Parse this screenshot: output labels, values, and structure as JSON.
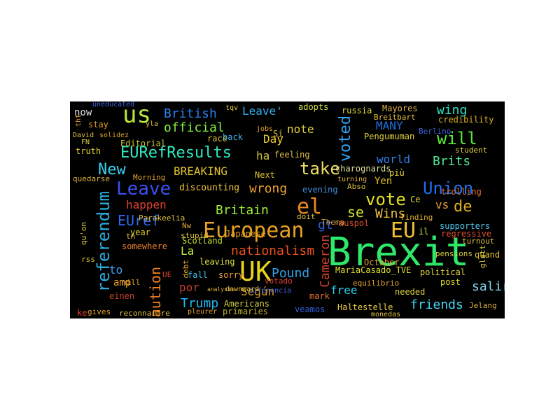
{
  "cloud": {
    "background": "#000000",
    "words": [
      {
        "text": "Brexit",
        "color": "#2ee86a"
      },
      {
        "text": "UK",
        "color": "#e8d41c"
      },
      {
        "text": "European",
        "color": "#e8a020"
      },
      {
        "text": "EU",
        "color": "#f0c030"
      },
      {
        "text": "us",
        "color": "#b8e838"
      },
      {
        "text": "Leave",
        "color": "#3c50f0"
      },
      {
        "text": "EURefResults",
        "color": "#30e8c0"
      },
      {
        "text": "referendum",
        "color": "#2ab0e0"
      },
      {
        "text": "el",
        "color": "#ec8a20"
      },
      {
        "text": "vote",
        "color": "#e0e020"
      },
      {
        "text": "Union",
        "color": "#2070f0"
      },
      {
        "text": "voted",
        "color": "#30a0f0"
      },
      {
        "text": "take",
        "color": "#f0e060"
      },
      {
        "text": "will",
        "color": "#58e838"
      },
      {
        "text": "New",
        "color": "#38d0f0"
      },
      {
        "text": "British",
        "color": "#2880f0"
      },
      {
        "text": "official",
        "color": "#80f040"
      },
      {
        "text": "EUref",
        "color": "#3068f0"
      },
      {
        "text": "nationalism",
        "color": "#f05020"
      },
      {
        "text": "Cameron",
        "color": "#d04028"
      },
      {
        "text": "Trump",
        "color": "#20b8f0"
      },
      {
        "text": "friends",
        "color": "#40d8f8"
      },
      {
        "text": "caution",
        "color": "#f08020"
      },
      {
        "text": "Britain",
        "color": "#a0f030"
      },
      {
        "text": "BREAKING",
        "color": "#e0c030"
      },
      {
        "text": "wrong",
        "color": "#f0a030"
      },
      {
        "text": "happen",
        "color": "#e04030"
      },
      {
        "text": "Pound",
        "color": "#30a0e8"
      },
      {
        "text": "de",
        "color": "#e0b020"
      },
      {
        "text": "salir",
        "color": "#80d8f0"
      },
      {
        "text": "world",
        "color": "#3080f0"
      },
      {
        "text": "Wins",
        "color": "#f0c040"
      },
      {
        "text": "se",
        "color": "#d0e030"
      },
      {
        "text": "gt",
        "color": "#3060e0"
      },
      {
        "text": "Brits",
        "color": "#50e890"
      },
      {
        "text": "Day",
        "color": "#f0d030"
      },
      {
        "text": "Leave'",
        "color": "#30b0f0"
      },
      {
        "text": "note",
        "color": "#e0d040"
      },
      {
        "text": "wing",
        "color": "#30e0c0"
      },
      {
        "text": "MANY",
        "color": "#2070e0"
      },
      {
        "text": "now",
        "color": "#e0e0e0"
      },
      {
        "text": "La",
        "color": "#c0f040"
      },
      {
        "text": "Según",
        "color": "#e0a020"
      },
      {
        "text": "ha",
        "color": "#d0c040"
      },
      {
        "text": "amp",
        "color": "#f0a020"
      },
      {
        "text": "por",
        "color": "#c04030"
      },
      {
        "text": "free",
        "color": "#30d0f0"
      },
      {
        "text": "to",
        "color": "#40a0f0"
      },
      {
        "text": "vs",
        "color": "#f0a040"
      },
      {
        "text": "Yen",
        "color": "#e0c020"
      },
      {
        "text": "discounting",
        "color": "#f0c040"
      },
      {
        "text": "MariaCasado_TVE",
        "color": "#e0e030"
      },
      {
        "text": "political",
        "color": "#e0d040"
      },
      {
        "text": "Haltestelle",
        "color": "#f0d040"
      },
      {
        "text": "supporters",
        "color": "#50c8f0"
      },
      {
        "text": "credibility",
        "color": "#e0b020"
      },
      {
        "text": "Editorial",
        "color": "#c8c030"
      },
      {
        "text": "Scotland",
        "color": "#c0e030"
      },
      {
        "text": "feeling",
        "color": "#e0c040"
      },
      {
        "text": "trolling",
        "color": "#e07030"
      },
      {
        "text": "charognards",
        "color": "#e0e0a0"
      },
      {
        "text": "stay",
        "color": "#e0a020"
      },
      {
        "text": "truth",
        "color": "#e0d030"
      },
      {
        "text": "race",
        "color": "#e0c030"
      },
      {
        "text": "back",
        "color": "#40b0e0"
      },
      {
        "text": "russia",
        "color": "#e0e040"
      },
      {
        "text": "adopts",
        "color": "#d0e040"
      },
      {
        "text": "Mayores",
        "color": "#e0b040"
      },
      {
        "text": "Pengumuman",
        "color": "#e0d040"
      },
      {
        "text": "Next",
        "color": "#e0c030"
      },
      {
        "text": "più",
        "color": "#f0e040"
      },
      {
        "text": "evening",
        "color": "#4090e0"
      },
      {
        "text": "Japanese",
        "color": "#e0a020"
      },
      {
        "text": "somewhere",
        "color": "#f08030"
      },
      {
        "text": "year",
        "color": "#e0d030"
      },
      {
        "text": "fall",
        "color": "#40c0f0"
      },
      {
        "text": "sorry",
        "color": "#f0a040"
      },
      {
        "text": "leaving",
        "color": "#e0e040"
      },
      {
        "text": "Americans",
        "color": "#d0d040"
      },
      {
        "text": "primaries",
        "color": "#c0b030"
      },
      {
        "text": "veamos",
        "color": "#3060e0"
      },
      {
        "text": "mark",
        "color": "#e07030"
      },
      {
        "text": "needed",
        "color": "#e0d040"
      },
      {
        "text": "post",
        "color": "#e0e030"
      },
      {
        "text": "October",
        "color": "#e0a030"
      },
      {
        "text": "auspol",
        "color": "#e05030"
      },
      {
        "text": "il",
        "color": "#e0e040"
      },
      {
        "text": "Ce",
        "color": "#e0d040"
      },
      {
        "text": "quand",
        "color": "#e0c030"
      },
      {
        "text": "regressive",
        "color": "#e05030"
      },
      {
        "text": "einen",
        "color": "#c04030"
      },
      {
        "text": "gives",
        "color": "#e0a030"
      },
      {
        "text": "reconnaitre",
        "color": "#e0c040"
      },
      {
        "text": "Berlino",
        "color": "#4060e0"
      },
      {
        "text": "Breitbart",
        "color": "#e0c040"
      },
      {
        "text": "student",
        "color": "#e0d040"
      },
      {
        "text": "doit",
        "color": "#e0c040"
      },
      {
        "text": "Thema",
        "color": "#d0a040"
      },
      {
        "text": "Jelang",
        "color": "#e0b040"
      },
      {
        "text": "pensions",
        "color": "#e0d040"
      },
      {
        "text": "turnout",
        "color": "#e0c040"
      },
      {
        "text": "glatt",
        "color": "#e0d040"
      },
      {
        "text": "equilibrio",
        "color": "#e0a030"
      },
      {
        "text": "finding",
        "color": "#e0b030"
      },
      {
        "text": "votado",
        "color": "#e04030"
      },
      {
        "text": "stupid",
        "color": "#e0c040"
      },
      {
        "text": "UE",
        "color": "#e04030"
      },
      {
        "text": "Nw",
        "color": "#e0a030"
      },
      {
        "text": "tn",
        "color": "#e0c040"
      },
      {
        "text": "mill",
        "color": "#e0a030"
      },
      {
        "text": "rss",
        "color": "#e0d040"
      },
      {
        "text": "qu'on",
        "color": "#e0d040"
      },
      {
        "text": "Parakeelia",
        "color": "#e0c040"
      },
      {
        "text": "Morning",
        "color": "#e0a030"
      },
      {
        "text": "quedarse",
        "color": "#e0b040"
      },
      {
        "text": "David",
        "color": "#e0c040"
      },
      {
        "text": "FN",
        "color": "#e0d040"
      },
      {
        "text": "solidez",
        "color": "#e0a030"
      },
      {
        "text": "uneducated",
        "color": "#4060e0"
      },
      {
        "text": "Sí",
        "color": "#e0c040"
      },
      {
        "text": "jobs",
        "color": "#e0a030"
      },
      {
        "text": "Abso",
        "color": "#e0c040"
      },
      {
        "text": "turning",
        "color": "#e0b040"
      },
      {
        "text": "debt",
        "color": "#e0a030"
      },
      {
        "text": "Diferencia",
        "color": "#4060e0"
      },
      {
        "text": "downward",
        "color": "#e0c040"
      },
      {
        "text": "pleurer",
        "color": "#e0a030"
      },
      {
        "text": "monedas",
        "color": "#e0c040"
      },
      {
        "text": "ke",
        "color": "#e04030"
      },
      {
        "text": "analysis",
        "color": "#e0b040"
      },
      {
        "text": "tht",
        "color": "#e0a030"
      },
      {
        "text": "yla",
        "color": "#e0c040"
      },
      {
        "text": "tqv",
        "color": "#e0d040"
      }
    ]
  }
}
